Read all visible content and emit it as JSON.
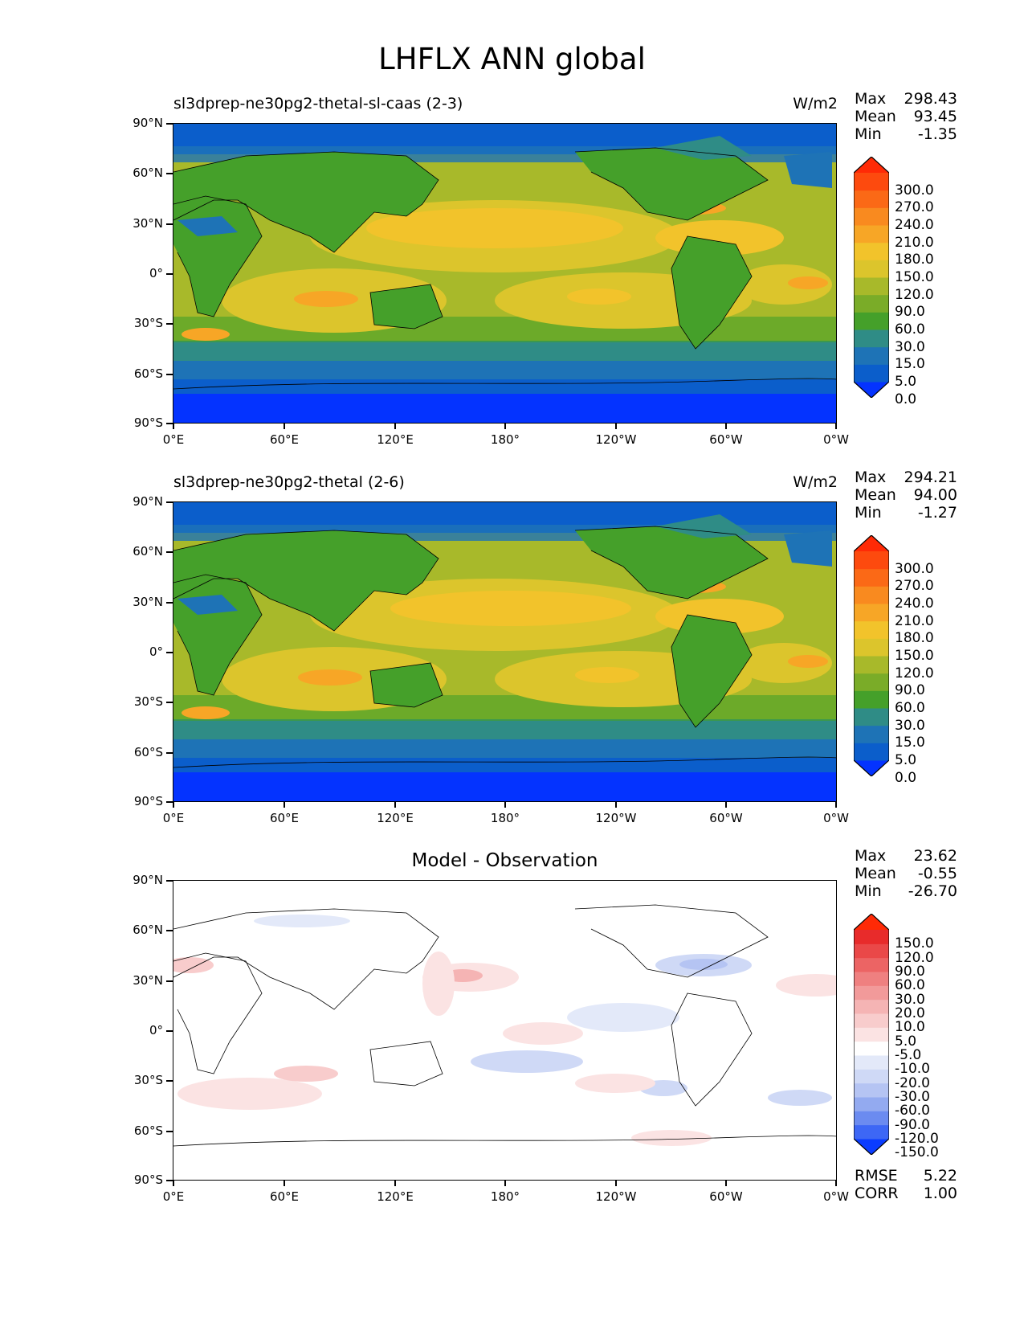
{
  "figure": {
    "title": "LHFLX ANN global",
    "ylabels": [
      "90°N",
      "60°N",
      "30°N",
      "0°",
      "30°S",
      "60°S",
      "90°S"
    ],
    "xlabels": [
      "0°E",
      "60°E",
      "120°E",
      "180°",
      "120°W",
      "60°W",
      "0°W"
    ]
  },
  "panels": [
    {
      "title_left": "sl3dprep-ne30pg2-thetal-sl-caas (2-3)",
      "title_right": "W/m2",
      "stats": {
        "max_label": "Max",
        "max": "298.43",
        "mean_label": "Mean",
        "mean": "93.45",
        "min_label": "Min",
        "min": "-1.35"
      },
      "colorbar_labels": [
        "300.0",
        "270.0",
        "240.0",
        "210.0",
        "180.0",
        "150.0",
        "120.0",
        "90.0",
        "60.0",
        "30.0",
        "15.0",
        "5.0",
        "0.0"
      ]
    },
    {
      "title_left": "sl3dprep-ne30pg2-thetal (2-6)",
      "title_right": "W/m2",
      "stats": {
        "max_label": "Max",
        "max": "294.21",
        "mean_label": "Mean",
        "mean": "94.00",
        "min_label": "Min",
        "min": "-1.27"
      },
      "colorbar_labels": [
        "300.0",
        "270.0",
        "240.0",
        "210.0",
        "180.0",
        "150.0",
        "120.0",
        "90.0",
        "60.0",
        "30.0",
        "15.0",
        "5.0",
        "0.0"
      ]
    },
    {
      "title_center": "Model - Observation",
      "stats": {
        "max_label": "Max",
        "max": "23.62",
        "mean_label": "Mean",
        "mean": "-0.55",
        "min_label": "Min",
        "min": "-26.70"
      },
      "colorbar_labels": [
        "150.0",
        "120.0",
        "90.0",
        "60.0",
        "30.0",
        "20.0",
        "10.0",
        "5.0",
        "-5.0",
        "-10.0",
        "-20.0",
        "-30.0",
        "-60.0",
        "-90.0",
        "-120.0",
        "-150.0"
      ],
      "rmse_label": "RMSE",
      "rmse": "5.22",
      "corr_label": "CORR",
      "corr": "1.00"
    }
  ],
  "colors": {
    "field_scale": [
      "#0433ff",
      "#0b5ecb",
      "#1e73b6",
      "#2f8c86",
      "#45a02a",
      "#7aac28",
      "#a8b92a",
      "#dcc52c",
      "#f2c32b",
      "#f7a626",
      "#f98a1f",
      "#fb6916",
      "#fd4a0e",
      "#ff2a06"
    ],
    "diff_scale": [
      "#0a3cff",
      "#3d67f5",
      "#6b8bf0",
      "#93aaf0",
      "#b5c4f3",
      "#cfd9f6",
      "#e3e9f9",
      "#ffffff",
      "#fbe3e3",
      "#f8cccc",
      "#f5b4b4",
      "#f29a9a",
      "#ef8080",
      "#ec6464",
      "#ea4848",
      "#e82b2b",
      "#ff2a06"
    ]
  }
}
